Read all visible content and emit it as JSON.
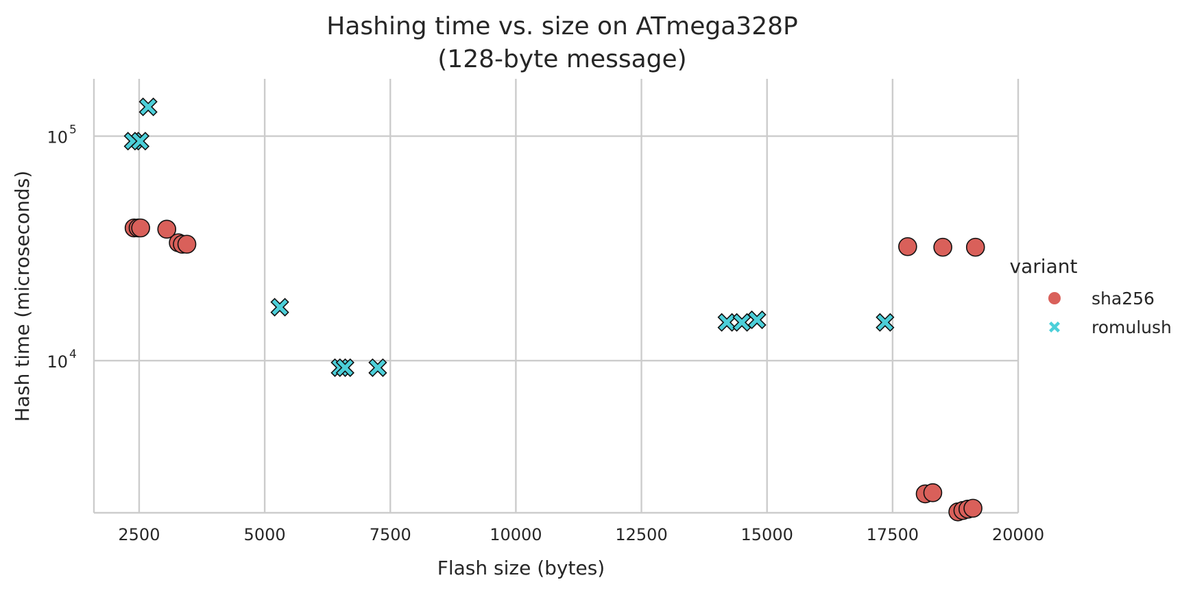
{
  "chart_data": {
    "type": "scatter",
    "title": "Hashing time vs. size on ATmega328P",
    "subtitle": "(128-byte message)",
    "xlabel": "Flash size (bytes)",
    "ylabel": "Hash time (microseconds)",
    "xlim": [
      1600,
      20000
    ],
    "ylim": [
      2100,
      180000
    ],
    "yscale": "log",
    "grid": true,
    "legend_position": "right",
    "legend_title": "variant",
    "x_ticks": [
      2500,
      5000,
      7500,
      10000,
      12500,
      15000,
      17500,
      20000
    ],
    "x_tick_labels": [
      "2500",
      "5000",
      "7500",
      "10000",
      "12500",
      "15000",
      "17500",
      "20000"
    ],
    "y_ticks": [
      {
        "value": 10000,
        "base": "10",
        "exp": "4"
      },
      {
        "value": 100000,
        "base": "10",
        "exp": "5"
      }
    ],
    "series": [
      {
        "name": "sha256",
        "marker": "circle",
        "color": "#d9605a",
        "points": [
          {
            "x": 2400,
            "y": 39000
          },
          {
            "x": 2480,
            "y": 39000
          },
          {
            "x": 2530,
            "y": 39000
          },
          {
            "x": 3050,
            "y": 38500
          },
          {
            "x": 3280,
            "y": 33500
          },
          {
            "x": 3360,
            "y": 33000
          },
          {
            "x": 3450,
            "y": 33000
          },
          {
            "x": 17800,
            "y": 32200
          },
          {
            "x": 18500,
            "y": 32000
          },
          {
            "x": 19150,
            "y": 32000
          },
          {
            "x": 18150,
            "y": 2550
          },
          {
            "x": 18300,
            "y": 2580
          },
          {
            "x": 18800,
            "y": 2120
          },
          {
            "x": 18900,
            "y": 2150
          },
          {
            "x": 19000,
            "y": 2180
          },
          {
            "x": 19100,
            "y": 2200
          }
        ]
      },
      {
        "name": "romulush",
        "marker": "x",
        "color": "#4ccfd9",
        "points": [
          {
            "x": 2680,
            "y": 135000
          },
          {
            "x": 2380,
            "y": 95000
          },
          {
            "x": 2520,
            "y": 95000
          },
          {
            "x": 5300,
            "y": 17300
          },
          {
            "x": 6500,
            "y": 9300
          },
          {
            "x": 6600,
            "y": 9300
          },
          {
            "x": 7250,
            "y": 9300
          },
          {
            "x": 14200,
            "y": 14800
          },
          {
            "x": 14500,
            "y": 14800
          },
          {
            "x": 14800,
            "y": 15200
          },
          {
            "x": 17350,
            "y": 14800
          }
        ]
      }
    ]
  }
}
